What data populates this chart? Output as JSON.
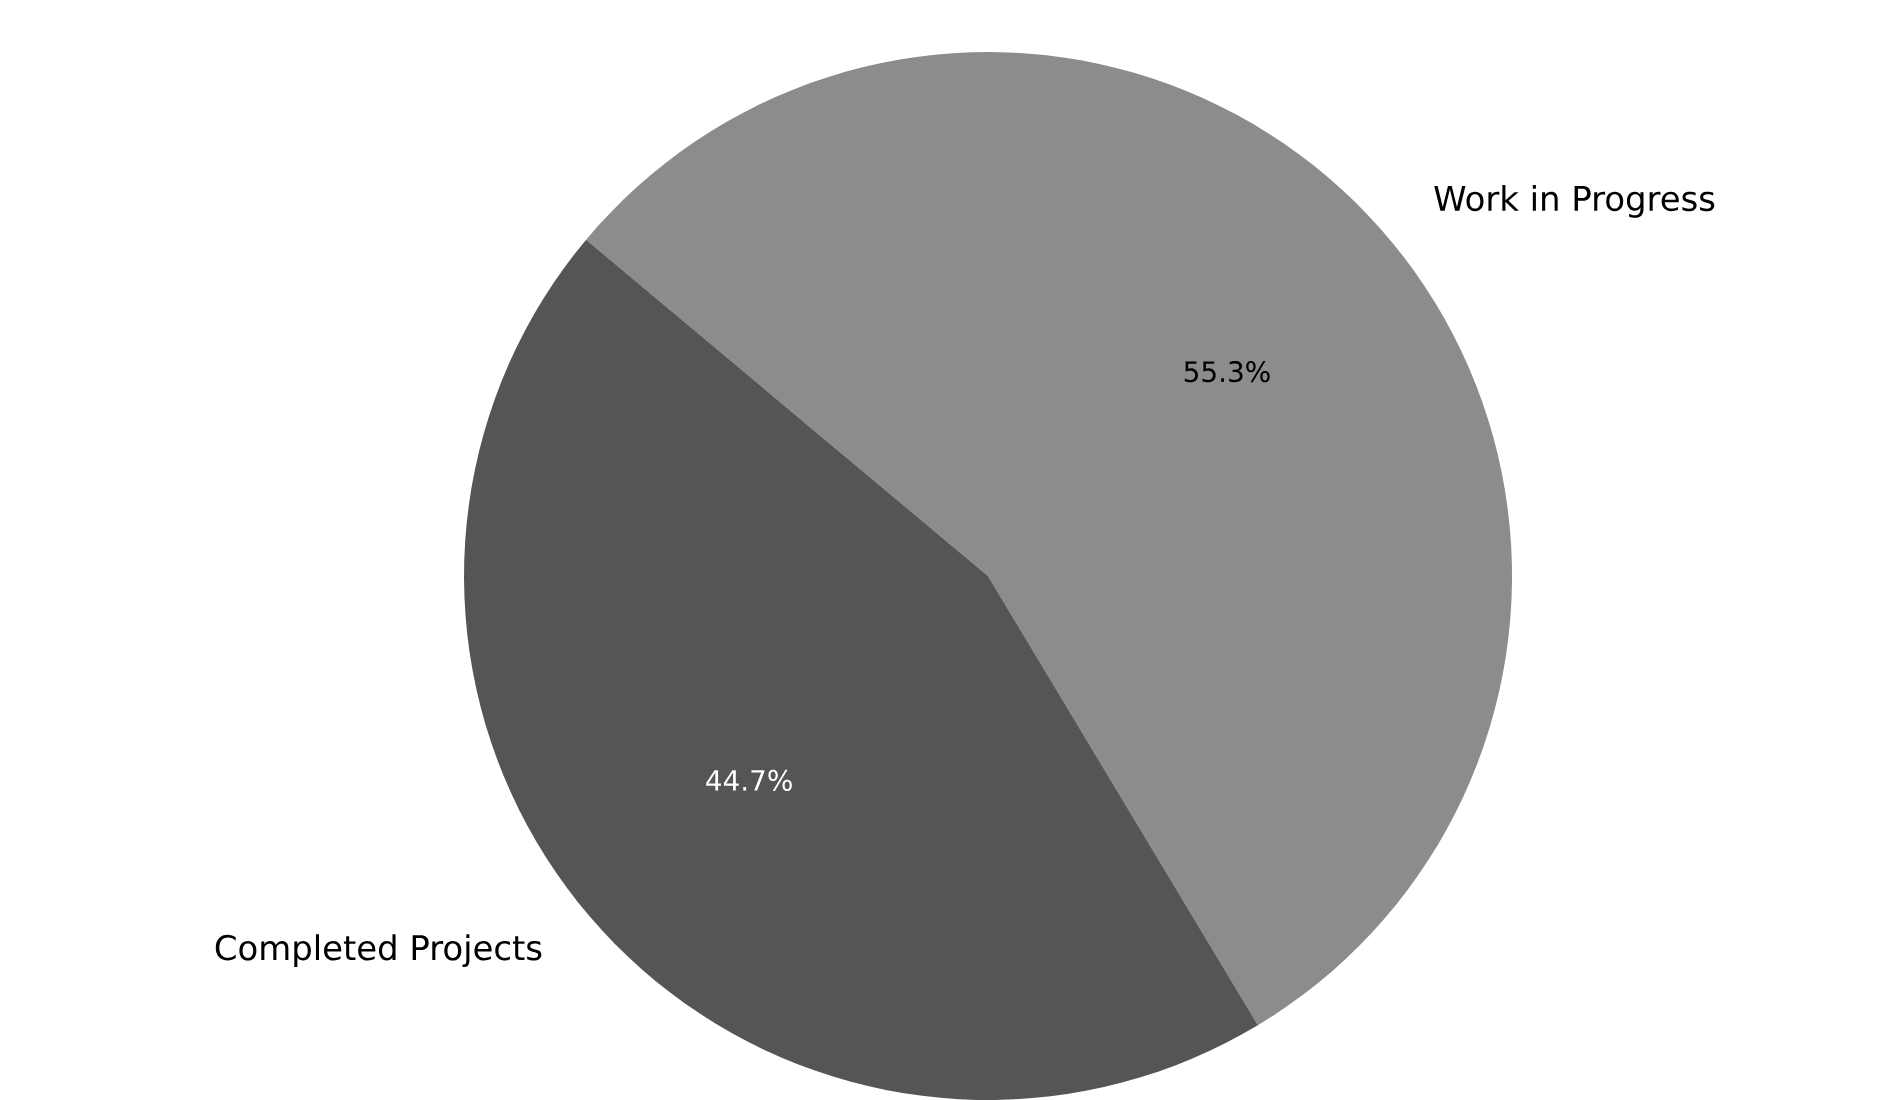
{
  "chart_data": {
    "type": "pie",
    "categories": [
      "Work in Progress",
      "Completed Projects"
    ],
    "values": [
      55.3,
      44.7
    ],
    "colors": [
      "#8c8c8c",
      "#555555"
    ],
    "value_labels": [
      "55.3%",
      "44.7%"
    ]
  }
}
